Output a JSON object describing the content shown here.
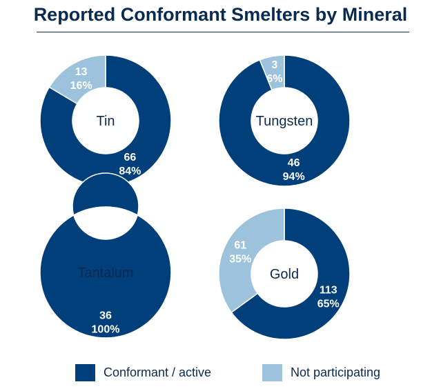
{
  "chart_data": {
    "type": "pie",
    "title": "Reported Conformant Smelters by Mineral",
    "legend_position": "bottom",
    "series_names": [
      "Conformant / active",
      "Not participating"
    ],
    "colors": {
      "conformant": "#003f7a",
      "not_participating": "#9dc3dc"
    },
    "charts": [
      {
        "label": "Tin",
        "conformant": 66,
        "conformant_pct": "84%",
        "not_participating": 13,
        "not_participating_pct": "16%"
      },
      {
        "label": "Tungsten",
        "conformant": 46,
        "conformant_pct": "94%",
        "not_participating": 3,
        "not_participating_pct": "6%"
      },
      {
        "label": "Tantalum",
        "conformant": 36,
        "conformant_pct": "100%",
        "not_participating": 0,
        "not_participating_pct": ""
      },
      {
        "label": "Gold",
        "conformant": 113,
        "conformant_pct": "65%",
        "not_participating": 61,
        "not_participating_pct": "35%"
      }
    ]
  }
}
